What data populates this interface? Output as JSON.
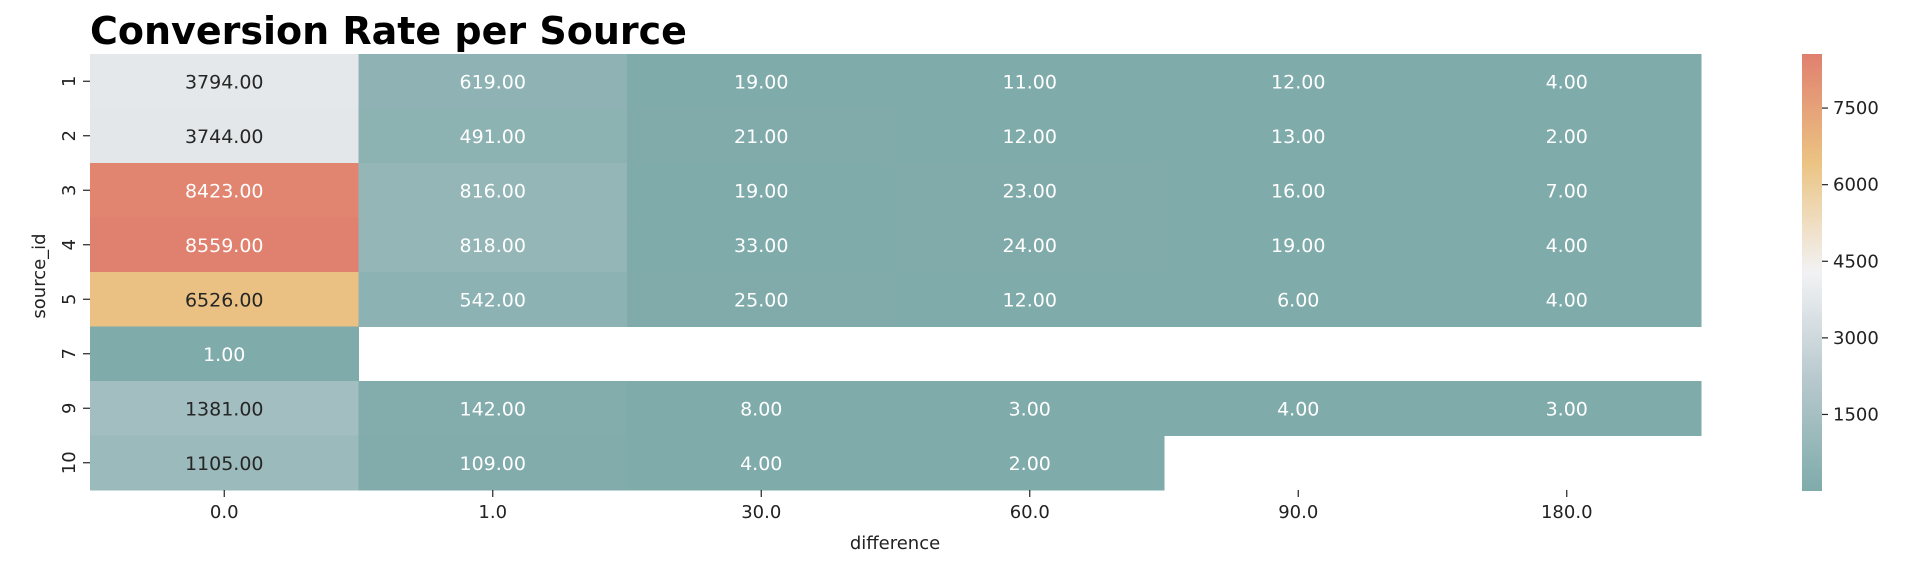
{
  "chart_data": {
    "type": "heatmap",
    "title": "Conversion Rate per Source",
    "xlabel": "difference",
    "ylabel": "source_id",
    "x_categories": [
      "0.0",
      "1.0",
      "30.0",
      "60.0",
      "90.0",
      "180.0"
    ],
    "y_categories": [
      "1",
      "2",
      "3",
      "4",
      "5",
      "7",
      "9",
      "10"
    ],
    "values": [
      [
        3794,
        619,
        19,
        11,
        12,
        4
      ],
      [
        3744,
        491,
        21,
        12,
        13,
        2
      ],
      [
        8423,
        816,
        19,
        23,
        16,
        7
      ],
      [
        8559,
        818,
        33,
        24,
        19,
        4
      ],
      [
        6526,
        542,
        25,
        12,
        6,
        4
      ],
      [
        1,
        null,
        null,
        null,
        null,
        null
      ],
      [
        1381,
        142,
        8,
        3,
        4,
        3
      ],
      [
        1105,
        109,
        4,
        2,
        null,
        null
      ]
    ],
    "value_format": "2 decimals",
    "colorbar": {
      "ticks": [
        1500,
        3000,
        4500,
        6000,
        7500
      ],
      "tick_labels": [
        "1500",
        "3000",
        "4500",
        "6000",
        "7500"
      ],
      "vmin": 1,
      "vmax": 8559
    },
    "colormap": [
      "#7fabaa",
      "#b6c8cd",
      "#f2f2f4",
      "#ebc483",
      "#e0806f"
    ]
  }
}
